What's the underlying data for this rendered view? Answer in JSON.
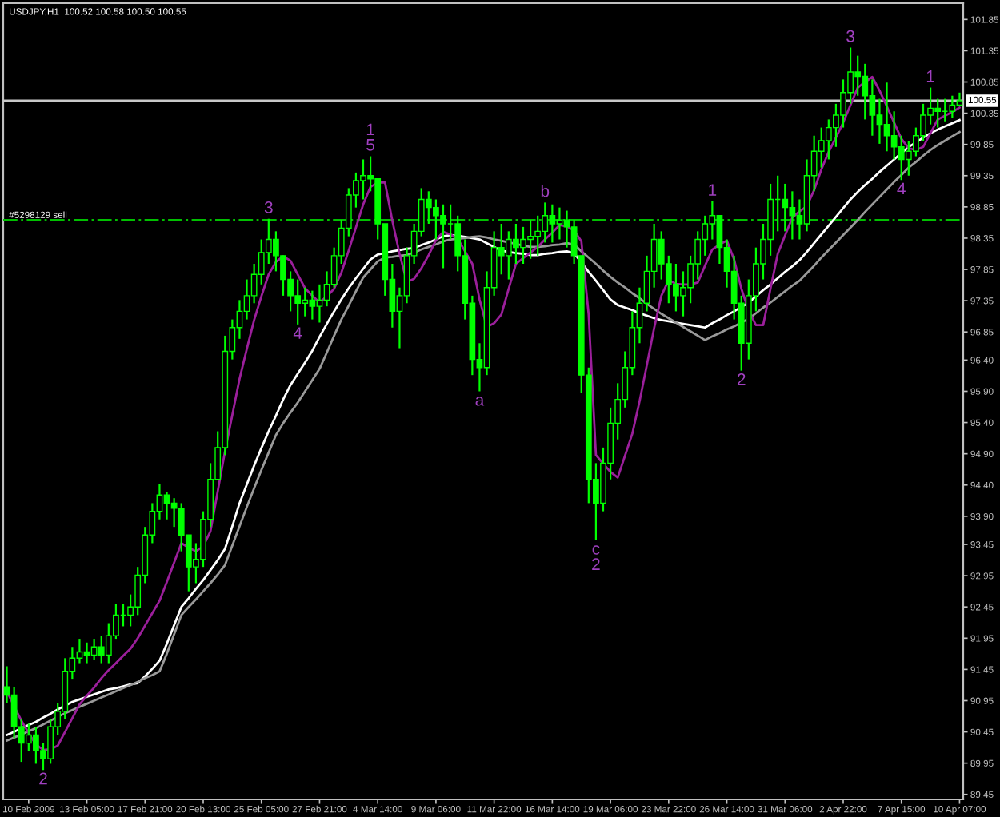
{
  "chart_data": {
    "type": "candlestick",
    "title": "USDJPY,H1  100.52 100.58 100.50 100.55",
    "color": "#00ff00",
    "categories": [
      null,
      null,
      null,
      "10 Feb 2009",
      null,
      null,
      null,
      null,
      null,
      null,
      null,
      "13 Feb 05:00",
      null,
      null,
      null,
      null,
      null,
      null,
      null,
      "17 Feb 21:00",
      null,
      null,
      null,
      null,
      null,
      null,
      null,
      "20 Feb 13:00",
      null,
      null,
      null,
      null,
      null,
      null,
      null,
      "25 Feb 05:00",
      null,
      null,
      null,
      null,
      null,
      null,
      null,
      "27 Feb 21:00",
      null,
      null,
      null,
      null,
      null,
      null,
      null,
      "4 Mar 14:00",
      null,
      null,
      null,
      null,
      null,
      null,
      null,
      "9 Mar 06:00",
      null,
      null,
      null,
      null,
      null,
      null,
      null,
      "11 Mar 22:00",
      null,
      null,
      null,
      null,
      null,
      null,
      null,
      "16 Mar 14:00",
      null,
      null,
      null,
      null,
      null,
      null,
      null,
      "19 Mar 06:00",
      null,
      null,
      null,
      null,
      null,
      null,
      null,
      "23 Mar 22:00",
      null,
      null,
      null,
      null,
      null,
      null,
      null,
      "26 Mar 14:00",
      null,
      null,
      null,
      null,
      null,
      null,
      null,
      "31 Mar 06:00",
      null,
      null,
      null,
      null,
      null,
      null,
      null,
      "2 Apr 22:00",
      null,
      null,
      null,
      null,
      null,
      null,
      null,
      "7 Apr 15:00",
      null,
      null,
      null,
      null,
      null,
      null,
      null,
      "10 Apr 07:00"
    ],
    "ohlc": [
      [
        91.17,
        91.5,
        90.91,
        91.04
      ],
      [
        91.04,
        91.17,
        90.35,
        90.53
      ],
      [
        90.53,
        90.66,
        89.97,
        90.27
      ],
      [
        90.27,
        90.58,
        90.15,
        90.4
      ],
      [
        90.4,
        90.53,
        89.94,
        90.15
      ],
      [
        90.15,
        90.27,
        89.84,
        90.02
      ],
      [
        90.02,
        90.66,
        89.94,
        90.53
      ],
      [
        90.53,
        90.91,
        90.4,
        90.78
      ],
      [
        90.78,
        91.63,
        90.66,
        91.42
      ],
      [
        91.42,
        91.81,
        91.3,
        91.63
      ],
      [
        91.63,
        91.94,
        91.55,
        91.73
      ],
      [
        91.73,
        91.88,
        91.55,
        91.68
      ],
      [
        91.68,
        91.94,
        91.6,
        91.81
      ],
      [
        91.81,
        91.99,
        91.55,
        91.68
      ],
      [
        91.68,
        92.19,
        91.55,
        91.99
      ],
      [
        91.99,
        92.5,
        91.94,
        92.32
      ],
      [
        92.32,
        92.5,
        92.14,
        92.32
      ],
      [
        92.32,
        92.65,
        92.14,
        92.45
      ],
      [
        92.45,
        93.09,
        92.32,
        92.96
      ],
      [
        92.96,
        93.73,
        92.83,
        93.6
      ],
      [
        93.6,
        94.11,
        93.47,
        93.98
      ],
      [
        93.98,
        94.42,
        93.85,
        94.24
      ],
      [
        94.24,
        94.29,
        93.85,
        94.11
      ],
      [
        94.11,
        94.19,
        93.73,
        94.03
      ],
      [
        94.03,
        94.11,
        93.34,
        93.6
      ],
      [
        93.6,
        93.6,
        92.7,
        93.09
      ],
      [
        93.09,
        93.47,
        92.83,
        93.21
      ],
      [
        93.21,
        93.98,
        93.09,
        93.85
      ],
      [
        93.85,
        94.75,
        93.73,
        94.49
      ],
      [
        94.49,
        95.26,
        94.49,
        95.0
      ],
      [
        95.0,
        96.79,
        94.88,
        96.54
      ],
      [
        96.54,
        97.05,
        96.41,
        96.92
      ],
      [
        96.92,
        97.36,
        96.74,
        97.18
      ],
      [
        97.18,
        97.69,
        97.05,
        97.43
      ],
      [
        97.43,
        97.94,
        97.31,
        97.77
      ],
      [
        97.77,
        98.33,
        97.61,
        98.12
      ],
      [
        98.12,
        98.66,
        97.94,
        98.33
      ],
      [
        98.33,
        98.46,
        97.82,
        98.07
      ],
      [
        98.07,
        98.07,
        97.43,
        97.69
      ],
      [
        97.69,
        97.82,
        97.18,
        97.43
      ],
      [
        97.43,
        97.69,
        96.97,
        97.31
      ],
      [
        97.31,
        97.56,
        97.1,
        97.36
      ],
      [
        97.36,
        97.51,
        97.05,
        97.26
      ],
      [
        97.26,
        97.61,
        97.0,
        97.36
      ],
      [
        97.36,
        97.82,
        97.26,
        97.61
      ],
      [
        97.61,
        98.2,
        97.56,
        98.07
      ],
      [
        98.07,
        98.64,
        97.94,
        98.51
      ],
      [
        98.51,
        99.15,
        98.38,
        99.04
      ],
      [
        99.04,
        99.4,
        98.84,
        99.27
      ],
      [
        99.27,
        99.61,
        98.97,
        99.35
      ],
      [
        99.35,
        99.66,
        99.1,
        99.3
      ],
      [
        99.3,
        99.3,
        98.33,
        98.58
      ],
      [
        98.58,
        98.58,
        97.43,
        97.69
      ],
      [
        97.69,
        97.94,
        96.92,
        97.18
      ],
      [
        97.18,
        97.56,
        96.59,
        97.43
      ],
      [
        97.43,
        98.2,
        97.31,
        98.07
      ],
      [
        98.07,
        98.58,
        97.94,
        98.46
      ],
      [
        98.46,
        99.15,
        98.38,
        98.97
      ],
      [
        98.97,
        99.1,
        98.58,
        98.84
      ],
      [
        98.84,
        98.97,
        98.33,
        98.71
      ],
      [
        98.71,
        98.89,
        97.87,
        98.58
      ],
      [
        98.58,
        98.89,
        98.33,
        98.58
      ],
      [
        98.58,
        98.71,
        97.82,
        98.07
      ],
      [
        98.07,
        98.33,
        97.05,
        97.31
      ],
      [
        97.31,
        97.43,
        96.16,
        96.41
      ],
      [
        96.41,
        96.67,
        95.9,
        96.28
      ],
      [
        96.28,
        97.82,
        96.16,
        97.56
      ],
      [
        97.56,
        98.46,
        97.43,
        98.2
      ],
      [
        98.2,
        98.58,
        97.77,
        98.07
      ],
      [
        98.07,
        98.46,
        97.69,
        98.33
      ],
      [
        98.33,
        98.58,
        97.94,
        98.2
      ],
      [
        98.2,
        98.53,
        97.94,
        98.33
      ],
      [
        98.33,
        98.64,
        98.02,
        98.38
      ],
      [
        98.38,
        98.71,
        98.07,
        98.46
      ],
      [
        98.46,
        98.92,
        98.28,
        98.71
      ],
      [
        98.71,
        98.89,
        98.28,
        98.58
      ],
      [
        98.58,
        98.84,
        98.33,
        98.64
      ],
      [
        98.64,
        98.79,
        98.2,
        98.53
      ],
      [
        98.53,
        98.64,
        97.94,
        98.07
      ],
      [
        98.07,
        98.07,
        95.87,
        96.16
      ],
      [
        96.16,
        96.28,
        94.11,
        94.49
      ],
      [
        94.49,
        94.75,
        93.52,
        94.11
      ],
      [
        94.11,
        95.0,
        93.98,
        94.75
      ],
      [
        94.75,
        95.64,
        94.49,
        95.39
      ],
      [
        95.39,
        96.03,
        95.13,
        95.77
      ],
      [
        95.77,
        96.54,
        95.64,
        96.28
      ],
      [
        96.28,
        97.18,
        96.16,
        96.92
      ],
      [
        96.92,
        97.56,
        96.67,
        97.31
      ],
      [
        97.31,
        98.07,
        97.18,
        97.82
      ],
      [
        97.82,
        98.58,
        97.56,
        98.33
      ],
      [
        98.33,
        98.46,
        97.69,
        97.94
      ],
      [
        97.94,
        98.07,
        97.31,
        97.61
      ],
      [
        97.61,
        97.94,
        97.18,
        97.43
      ],
      [
        97.43,
        97.82,
        97.1,
        97.56
      ],
      [
        97.56,
        98.07,
        97.31,
        97.94
      ],
      [
        97.94,
        98.46,
        97.69,
        98.33
      ],
      [
        98.33,
        98.71,
        98.07,
        98.58
      ],
      [
        98.58,
        98.94,
        98.33,
        98.71
      ],
      [
        98.71,
        98.71,
        97.94,
        98.2
      ],
      [
        98.2,
        98.33,
        97.56,
        97.82
      ],
      [
        97.82,
        98.07,
        97.05,
        97.31
      ],
      [
        97.31,
        97.43,
        96.23,
        96.67
      ],
      [
        96.67,
        97.69,
        96.41,
        97.43
      ],
      [
        97.43,
        98.2,
        97.18,
        97.94
      ],
      [
        97.94,
        98.58,
        97.69,
        98.33
      ],
      [
        98.33,
        99.22,
        98.07,
        98.97
      ],
      [
        98.97,
        99.35,
        98.46,
        98.97
      ],
      [
        98.97,
        99.22,
        98.46,
        98.84
      ],
      [
        98.84,
        99.1,
        98.33,
        98.71
      ],
      [
        98.71,
        98.97,
        98.33,
        98.58
      ],
      [
        98.58,
        99.61,
        98.46,
        99.35
      ],
      [
        99.35,
        99.99,
        99.1,
        99.74
      ],
      [
        99.74,
        100.12,
        99.48,
        99.91
      ],
      [
        99.91,
        100.25,
        99.61,
        100.12
      ],
      [
        100.12,
        100.5,
        99.81,
        100.32
      ],
      [
        100.32,
        100.89,
        100.12,
        100.68
      ],
      [
        100.68,
        101.4,
        100.5,
        101.01
      ],
      [
        101.01,
        101.27,
        100.63,
        100.94
      ],
      [
        100.94,
        101.14,
        100.25,
        100.63
      ],
      [
        100.63,
        100.89,
        99.99,
        100.32
      ],
      [
        100.32,
        100.58,
        99.86,
        100.17
      ],
      [
        100.17,
        100.84,
        99.74,
        99.99
      ],
      [
        99.99,
        100.38,
        99.61,
        99.81
      ],
      [
        99.81,
        99.99,
        99.28,
        99.61
      ],
      [
        99.61,
        99.91,
        99.35,
        99.74
      ],
      [
        99.74,
        100.12,
        99.66,
        99.99
      ],
      [
        99.99,
        100.5,
        99.91,
        100.32
      ],
      [
        100.32,
        100.76,
        100.17,
        100.43
      ],
      [
        100.43,
        100.58,
        100.12,
        100.38
      ],
      [
        100.38,
        100.58,
        100.22,
        100.38
      ],
      [
        100.38,
        100.63,
        100.27,
        100.48
      ],
      [
        100.48,
        100.68,
        100.48,
        100.55
      ]
    ],
    "series": [
      {
        "type": "line",
        "color": "#ffffff",
        "values": [
          90.4,
          90.45,
          90.51,
          90.56,
          90.61,
          90.68,
          90.74,
          90.81,
          90.87,
          90.93,
          90.97,
          91.01,
          91.05,
          91.09,
          91.13,
          91.15,
          91.18,
          91.21,
          91.23,
          91.34,
          91.46,
          91.59,
          91.86,
          92.16,
          92.45,
          92.59,
          92.74,
          92.88,
          93.04,
          93.2,
          93.38,
          93.74,
          94.11,
          94.41,
          94.71,
          94.99,
          95.26,
          95.51,
          95.77,
          96.0,
          96.18,
          96.36,
          96.55,
          96.77,
          96.98,
          97.18,
          97.37,
          97.55,
          97.71,
          97.86,
          98.01,
          98.09,
          98.11,
          98.14,
          98.16,
          98.18,
          98.19,
          98.24,
          98.28,
          98.33,
          98.38,
          98.4,
          98.39,
          98.37,
          98.35,
          98.33,
          98.27,
          98.21,
          98.15,
          98.13,
          98.11,
          98.1,
          98.08,
          98.08,
          98.1,
          98.11,
          98.13,
          98.14,
          98.11,
          97.96,
          97.81,
          97.67,
          97.52,
          97.37,
          97.28,
          97.24,
          97.2,
          97.15,
          97.11,
          97.07,
          97.04,
          97.02,
          97.0,
          96.98,
          96.96,
          96.94,
          96.92,
          96.99,
          97.05,
          97.12,
          97.18,
          97.25,
          97.32,
          97.42,
          97.52,
          97.61,
          97.71,
          97.81,
          97.9,
          98.0,
          98.13,
          98.27,
          98.41,
          98.55,
          98.69,
          98.83,
          98.97,
          99.09,
          99.2,
          99.3,
          99.41,
          99.51,
          99.61,
          99.71,
          99.81,
          99.88,
          99.96,
          100.03,
          100.09,
          100.14,
          100.19,
          100.24
        ]
      },
      {
        "type": "line",
        "color": "#999999",
        "values": [
          90.31,
          90.36,
          90.41,
          90.46,
          90.51,
          90.57,
          90.63,
          90.69,
          90.75,
          90.8,
          90.85,
          90.9,
          90.95,
          91.0,
          91.05,
          91.1,
          91.15,
          91.2,
          91.25,
          91.31,
          91.36,
          91.42,
          91.7,
          92.01,
          92.32,
          92.45,
          92.57,
          92.7,
          92.83,
          92.97,
          93.12,
          93.43,
          93.74,
          94.05,
          94.35,
          94.64,
          94.92,
          95.2,
          95.39,
          95.56,
          95.72,
          95.9,
          96.08,
          96.26,
          96.52,
          96.79,
          97.05,
          97.27,
          97.5,
          97.72,
          97.85,
          97.98,
          98.04,
          98.05,
          98.07,
          98.08,
          98.12,
          98.17,
          98.21,
          98.25,
          98.3,
          98.33,
          98.34,
          98.35,
          98.37,
          98.38,
          98.36,
          98.33,
          98.31,
          98.28,
          98.26,
          98.23,
          98.21,
          98.21,
          98.22,
          98.24,
          98.25,
          98.27,
          98.25,
          98.14,
          98.04,
          97.94,
          97.83,
          97.73,
          97.64,
          97.56,
          97.47,
          97.39,
          97.3,
          97.22,
          97.14,
          97.07,
          97.0,
          96.93,
          96.86,
          96.79,
          96.72,
          96.78,
          96.83,
          96.89,
          96.94,
          97.0,
          97.06,
          97.15,
          97.24,
          97.32,
          97.41,
          97.5,
          97.59,
          97.67,
          97.79,
          97.91,
          98.04,
          98.16,
          98.28,
          98.4,
          98.52,
          98.64,
          98.77,
          98.89,
          99.01,
          99.13,
          99.25,
          99.36,
          99.48,
          99.57,
          99.67,
          99.76,
          99.84,
          99.91,
          99.98,
          100.05
        ]
      },
      {
        "type": "line",
        "color": "#9b1f9b",
        "values": [
          91.1,
          90.86,
          90.63,
          90.43,
          90.25,
          90.16,
          90.17,
          90.23,
          90.45,
          90.67,
          90.89,
          91.03,
          91.16,
          91.31,
          91.44,
          91.55,
          91.67,
          91.78,
          91.95,
          92.15,
          92.35,
          92.55,
          92.85,
          93.16,
          93.47,
          93.4,
          93.34,
          93.42,
          93.66,
          94.3,
          94.94,
          95.52,
          96.1,
          96.58,
          97.04,
          97.42,
          97.77,
          97.97,
          98.06,
          97.99,
          97.77,
          97.55,
          97.43,
          97.32,
          97.42,
          97.54,
          97.8,
          98.15,
          98.52,
          98.89,
          99.17,
          99.24,
          99.24,
          98.63,
          98.1,
          97.65,
          97.7,
          97.87,
          98.08,
          98.32,
          98.45,
          98.41,
          98.34,
          98.14,
          97.94,
          97.37,
          96.93,
          96.99,
          97.13,
          97.54,
          97.94,
          98.03,
          98.12,
          98.21,
          98.33,
          98.44,
          98.56,
          98.54,
          98.47,
          98.3,
          97.13,
          94.88,
          94.74,
          94.61,
          94.52,
          94.87,
          95.22,
          95.74,
          96.32,
          96.91,
          97.43,
          97.68,
          97.62,
          97.61,
          97.61,
          97.64,
          97.91,
          98.17,
          98.25,
          98.31,
          98.01,
          97.54,
          97.19,
          96.96,
          96.96,
          97.54,
          98.1,
          98.39,
          98.68,
          98.78,
          98.86,
          99.12,
          99.45,
          99.73,
          99.96,
          100.2,
          100.48,
          100.76,
          100.85,
          100.93,
          100.71,
          100.46,
          100.2,
          99.94,
          99.79,
          99.76,
          99.81,
          100.03,
          100.25,
          100.31,
          100.37,
          100.44
        ]
      }
    ],
    "ylim": [
      89.37,
      102.11
    ],
    "yticks": [
      {
        "value": 101.85,
        "label": "101.85"
      },
      {
        "value": 101.35,
        "label": "101.35"
      },
      {
        "value": 100.85,
        "label": "100.85"
      },
      {
        "value": 100.35,
        "label": "100.35"
      },
      {
        "value": 99.85,
        "label": "99.85"
      },
      {
        "value": 99.35,
        "label": "99.35"
      },
      {
        "value": 98.85,
        "label": "98.85"
      },
      {
        "value": 98.35,
        "label": "98.35"
      },
      {
        "value": 97.85,
        "label": "97.85"
      },
      {
        "value": 97.35,
        "label": "97.35"
      },
      {
        "value": 96.85,
        "label": "96.85"
      },
      {
        "value": 96.4,
        "label": "96.40"
      },
      {
        "value": 95.9,
        "label": "95.90"
      },
      {
        "value": 95.4,
        "label": "95.40"
      },
      {
        "value": 94.9,
        "label": "94.90"
      },
      {
        "value": 94.4,
        "label": "94.40"
      },
      {
        "value": 93.9,
        "label": "93.90"
      },
      {
        "value": 93.45,
        "label": "93.45"
      },
      {
        "value": 92.95,
        "label": "92.95"
      },
      {
        "value": 92.45,
        "label": "92.45"
      },
      {
        "value": 91.95,
        "label": "91.95"
      },
      {
        "value": 91.45,
        "label": "91.45"
      },
      {
        "value": 90.95,
        "label": "90.95"
      },
      {
        "value": 90.45,
        "label": "90.45"
      },
      {
        "value": 89.95,
        "label": "89.95"
      },
      {
        "value": 89.45,
        "label": "89.45"
      }
    ],
    "ref_lines": [
      {
        "axis": "y",
        "value": 100.55,
        "label": "100.55",
        "color": "#c8c8c8",
        "line_style": "solid"
      },
      {
        "axis": "y",
        "value": 98.64,
        "label": "#5298129 sell",
        "color": "#00c000",
        "line_style": "dashdot"
      }
    ],
    "annotations": [
      {
        "text": "2",
        "y": 89.84
      },
      {
        "text": "3",
        "y": 98.66
      },
      {
        "text": "4",
        "y": 96.97
      },
      {
        "text": "5",
        "y": 99.66
      },
      {
        "text": "1",
        "y": 99.66
      },
      {
        "text": "a",
        "y": 95.9
      },
      {
        "text": "b",
        "y": 98.92
      },
      {
        "text": "c",
        "y": 93.52
      },
      {
        "text": "2",
        "y": 93.52
      },
      {
        "text": "1",
        "y": 98.94
      },
      {
        "text": "2",
        "y": 96.23
      },
      {
        "text": "3",
        "y": 101.4
      },
      {
        "text": "4",
        "y": 99.28
      },
      {
        "text": "1",
        "y": 100.76
      }
    ]
  }
}
